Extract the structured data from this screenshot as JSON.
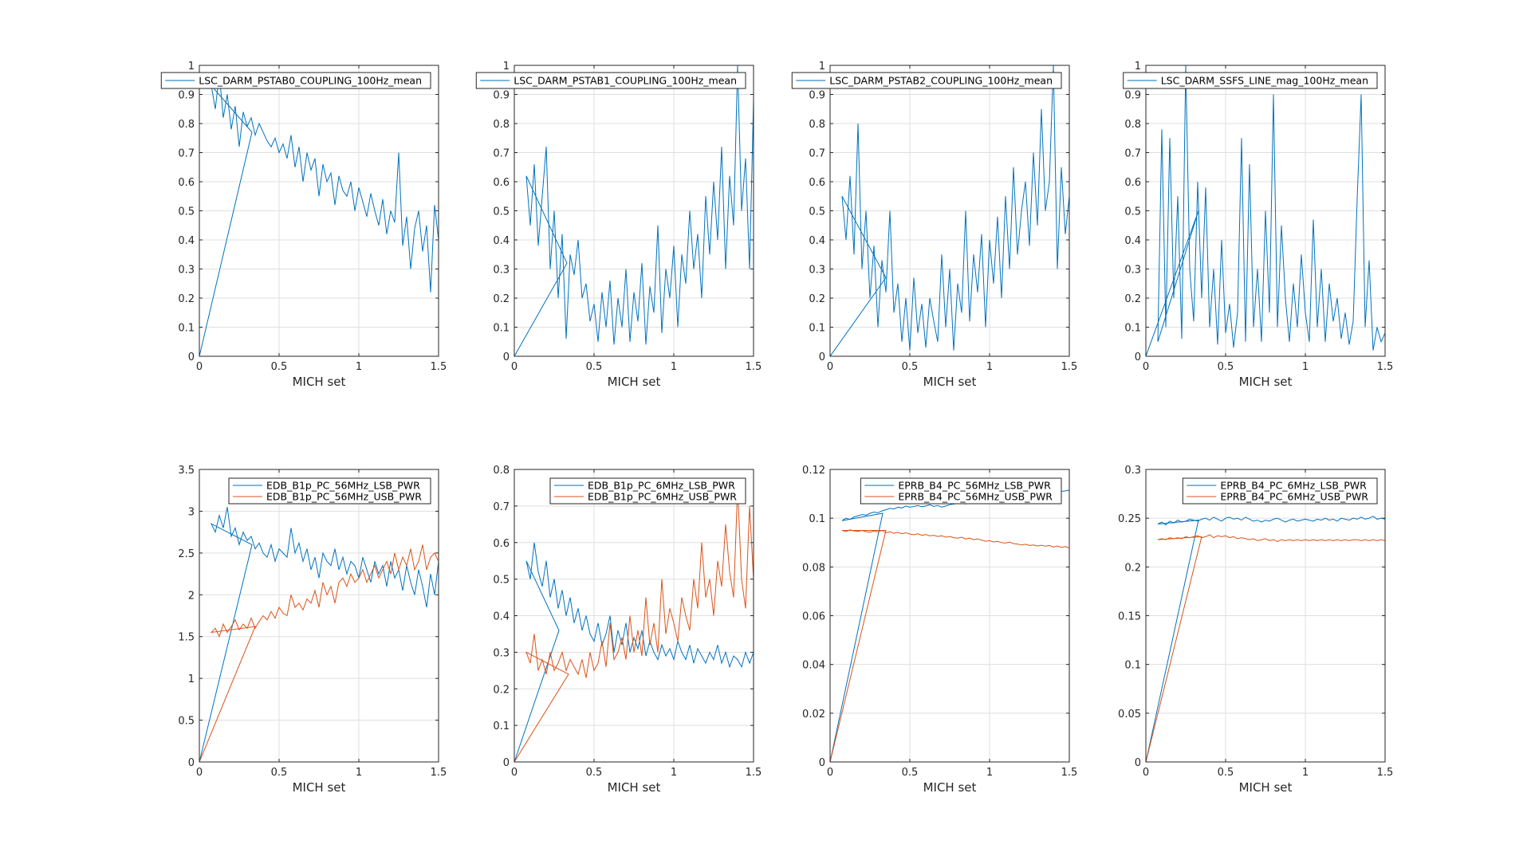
{
  "colors": {
    "blue": "#0072BD",
    "orange": "#D95319",
    "grid": "#DFDFDF",
    "axis": "#262626"
  },
  "chart_data": [
    {
      "type": "line",
      "xlabel": "MICH set",
      "xlim": [
        0,
        1.5
      ],
      "xticks": [
        "0",
        "0.5",
        "1",
        "1.5"
      ],
      "ylim": [
        0,
        1
      ],
      "yticks": [
        "0",
        "0.1",
        "0.2",
        "0.3",
        "0.4",
        "0.5",
        "0.6",
        "0.7",
        "0.8",
        "0.9",
        "1"
      ],
      "grid": true,
      "legend": "top-right",
      "x_start": 0.075,
      "x_step": 0.025,
      "series": [
        {
          "name": "LSC_DARM_PSTAB0_COUPLING_100Hz_mean",
          "color": "blue",
          "ramp_end": [
            0.33,
            0.77
          ],
          "values": [
            0.93,
            0.85,
            0.97,
            0.82,
            0.9,
            0.78,
            0.86,
            0.72,
            0.84,
            0.79,
            0.82,
            0.76,
            0.8,
            0.77,
            0.74,
            0.72,
            0.75,
            0.7,
            0.73,
            0.68,
            0.76,
            0.65,
            0.72,
            0.6,
            0.7,
            0.64,
            0.68,
            0.55,
            0.66,
            0.6,
            0.63,
            0.52,
            0.62,
            0.57,
            0.55,
            0.6,
            0.5,
            0.58,
            0.53,
            0.48,
            0.56,
            0.5,
            0.45,
            0.54,
            0.42,
            0.5,
            0.46,
            0.7,
            0.38,
            0.48,
            0.3,
            0.44,
            0.5,
            0.36,
            0.45,
            0.22,
            0.52,
            0.4
          ]
        }
      ]
    },
    {
      "type": "line",
      "xlabel": "MICH set",
      "xlim": [
        0,
        1.5
      ],
      "xticks": [
        "0",
        "0.5",
        "1",
        "1.5"
      ],
      "ylim": [
        0,
        1
      ],
      "yticks": [
        "0",
        "0.1",
        "0.2",
        "0.3",
        "0.4",
        "0.5",
        "0.6",
        "0.7",
        "0.8",
        "0.9",
        "1"
      ],
      "grid": true,
      "legend": "top-right",
      "x_start": 0.075,
      "x_step": 0.025,
      "series": [
        {
          "name": "LSC_DARM_PSTAB1_COUPLING_100Hz_mean",
          "color": "blue",
          "ramp_end": [
            0.33,
            0.32
          ],
          "values": [
            0.62,
            0.45,
            0.66,
            0.38,
            0.55,
            0.72,
            0.3,
            0.5,
            0.2,
            0.42,
            0.06,
            0.35,
            0.28,
            0.4,
            0.2,
            0.25,
            0.12,
            0.18,
            0.05,
            0.22,
            0.1,
            0.26,
            0.04,
            0.2,
            0.1,
            0.3,
            0.05,
            0.22,
            0.12,
            0.32,
            0.04,
            0.24,
            0.15,
            0.45,
            0.08,
            0.3,
            0.2,
            0.38,
            0.1,
            0.35,
            0.25,
            0.5,
            0.3,
            0.42,
            0.2,
            0.55,
            0.35,
            0.6,
            0.4,
            0.72,
            0.3,
            0.62,
            0.45,
            1.0,
            0.5,
            0.68,
            0.3,
            0.88
          ]
        }
      ]
    },
    {
      "type": "line",
      "xlabel": "MICH set",
      "xlim": [
        0,
        1.5
      ],
      "xticks": [
        "0",
        "0.5",
        "1",
        "1.5"
      ],
      "ylim": [
        0,
        1
      ],
      "yticks": [
        "0",
        "0.1",
        "0.2",
        "0.3",
        "0.4",
        "0.5",
        "0.6",
        "0.7",
        "0.8",
        "0.9",
        "1"
      ],
      "grid": true,
      "legend": "top-right",
      "x_start": 0.075,
      "x_step": 0.025,
      "series": [
        {
          "name": "LSC_DARM_PSTAB2_COUPLING_100Hz_mean",
          "color": "blue",
          "ramp_end": [
            0.35,
            0.27
          ],
          "values": [
            0.55,
            0.4,
            0.62,
            0.35,
            0.8,
            0.3,
            0.5,
            0.2,
            0.38,
            0.1,
            0.33,
            0.22,
            0.5,
            0.15,
            0.25,
            0.05,
            0.2,
            0.02,
            0.27,
            0.08,
            0.18,
            0.03,
            0.2,
            0.12,
            0.05,
            0.35,
            0.1,
            0.3,
            0.02,
            0.25,
            0.15,
            0.5,
            0.12,
            0.35,
            0.22,
            0.42,
            0.1,
            0.4,
            0.25,
            0.48,
            0.2,
            0.55,
            0.3,
            0.65,
            0.35,
            0.5,
            0.6,
            0.38,
            0.7,
            0.45,
            0.85,
            0.5,
            0.6,
            1.0,
            0.3,
            0.65,
            0.42,
            0.55
          ]
        }
      ]
    },
    {
      "type": "line",
      "xlabel": "MICH set",
      "xlim": [
        0,
        1.5
      ],
      "xticks": [
        "0",
        "0.5",
        "1",
        "1.5"
      ],
      "ylim": [
        0,
        1
      ],
      "yticks": [
        "0",
        "0.1",
        "0.2",
        "0.3",
        "0.4",
        "0.5",
        "0.6",
        "0.7",
        "0.8",
        "0.9",
        "1"
      ],
      "grid": true,
      "legend": "top-right",
      "x_start": 0.075,
      "x_step": 0.025,
      "series": [
        {
          "name": "LSC_DARM_SSFS_LINE_mag_100Hz_mean",
          "color": "blue",
          "ramp_end": [
            0.33,
            0.5
          ],
          "values": [
            0.05,
            0.78,
            0.1,
            0.75,
            0.2,
            0.55,
            0.06,
            1.0,
            0.3,
            0.12,
            0.6,
            0.2,
            0.58,
            0.1,
            0.3,
            0.04,
            0.4,
            0.08,
            0.18,
            0.03,
            0.15,
            0.75,
            0.05,
            0.66,
            0.1,
            0.3,
            0.05,
            0.5,
            0.15,
            0.9,
            0.1,
            0.45,
            0.2,
            0.05,
            0.25,
            0.1,
            0.35,
            0.15,
            0.05,
            0.47,
            0.1,
            0.3,
            0.05,
            0.25,
            0.12,
            0.2,
            0.06,
            0.15,
            0.04,
            0.12,
            0.54,
            0.9,
            0.1,
            0.33,
            0.02,
            0.1,
            0.05,
            0.08
          ]
        }
      ]
    },
    {
      "type": "line",
      "xlabel": "MICH set",
      "xlim": [
        0,
        1.5
      ],
      "xticks": [
        "0",
        "0.5",
        "1",
        "1.5"
      ],
      "ylim": [
        0,
        3.5
      ],
      "yticks": [
        "0",
        "0.5",
        "1",
        "1.5",
        "2",
        "2.5",
        "3",
        "3.5"
      ],
      "grid": true,
      "legend": "top-right",
      "x_start": 0.075,
      "x_step": 0.025,
      "series": [
        {
          "name": "EDB_B1p_PC_56MHz_LSB_PWR",
          "color": "blue",
          "ramp_end": [
            0.33,
            2.6
          ],
          "values": [
            2.85,
            2.75,
            2.95,
            2.8,
            3.05,
            2.7,
            2.8,
            2.6,
            2.75,
            2.65,
            2.7,
            2.55,
            2.62,
            2.5,
            2.45,
            2.6,
            2.4,
            2.55,
            2.5,
            2.45,
            2.8,
            2.5,
            2.62,
            2.4,
            2.55,
            2.3,
            2.45,
            2.2,
            2.5,
            2.4,
            2.35,
            2.55,
            2.3,
            2.45,
            2.25,
            2.4,
            2.35,
            2.2,
            2.45,
            2.3,
            2.15,
            2.4,
            2.25,
            2.35,
            2.1,
            2.4,
            2.2,
            2.3,
            2.05,
            2.35,
            2.15,
            2.0,
            2.3,
            2.1,
            1.85,
            2.25,
            2.0,
            2.4
          ]
        },
        {
          "name": "EDB_B1p_PC_56MHz_USB_PWR",
          "color": "orange",
          "ramp_end": [
            0.35,
            1.62
          ],
          "values": [
            1.55,
            1.6,
            1.5,
            1.65,
            1.55,
            1.62,
            1.7,
            1.58,
            1.65,
            1.6,
            1.72,
            1.6,
            1.68,
            1.75,
            1.7,
            1.8,
            1.72,
            1.85,
            1.78,
            1.75,
            2.0,
            1.85,
            1.9,
            1.82,
            1.95,
            1.9,
            2.05,
            1.85,
            2.15,
            2.0,
            2.1,
            1.9,
            2.15,
            2.2,
            2.1,
            2.25,
            2.15,
            2.2,
            2.3,
            2.15,
            2.25,
            2.35,
            2.2,
            2.3,
            2.4,
            2.25,
            2.5,
            2.3,
            2.45,
            2.35,
            2.55,
            2.3,
            2.4,
            2.6,
            2.3,
            2.45,
            2.5,
            2.4
          ]
        }
      ]
    },
    {
      "type": "line",
      "xlabel": "MICH set",
      "xlim": [
        0,
        1.5
      ],
      "xticks": [
        "0",
        "0.5",
        "1",
        "1.5"
      ],
      "ylim": [
        0,
        0.8
      ],
      "yticks": [
        "0",
        "0.1",
        "0.2",
        "0.3",
        "0.4",
        "0.5",
        "0.6",
        "0.7",
        "0.8"
      ],
      "grid": true,
      "legend": "top-right",
      "x_start": 0.075,
      "x_step": 0.025,
      "series": [
        {
          "name": "EDB_B1p_PC_6MHz_LSB_PWR",
          "color": "blue",
          "ramp_end": [
            0.28,
            0.36
          ],
          "values": [
            0.55,
            0.5,
            0.6,
            0.52,
            0.48,
            0.55,
            0.45,
            0.5,
            0.42,
            0.47,
            0.4,
            0.45,
            0.38,
            0.42,
            0.36,
            0.4,
            0.35,
            0.33,
            0.38,
            0.32,
            0.35,
            0.4,
            0.3,
            0.36,
            0.32,
            0.38,
            0.3,
            0.34,
            0.31,
            0.36,
            0.29,
            0.33,
            0.3,
            0.28,
            0.32,
            0.29,
            0.31,
            0.28,
            0.33,
            0.3,
            0.28,
            0.32,
            0.27,
            0.31,
            0.29,
            0.27,
            0.3,
            0.28,
            0.32,
            0.27,
            0.3,
            0.26,
            0.29,
            0.28,
            0.26,
            0.3,
            0.27,
            0.3
          ]
        },
        {
          "name": "EDB_B1p_PC_6MHz_USB_PWR",
          "color": "orange",
          "ramp_end": [
            0.34,
            0.24
          ],
          "values": [
            0.3,
            0.27,
            0.35,
            0.25,
            0.28,
            0.24,
            0.3,
            0.25,
            0.27,
            0.3,
            0.25,
            0.28,
            0.26,
            0.24,
            0.28,
            0.23,
            0.3,
            0.25,
            0.27,
            0.33,
            0.26,
            0.38,
            0.28,
            0.3,
            0.34,
            0.28,
            0.4,
            0.3,
            0.36,
            0.29,
            0.45,
            0.32,
            0.38,
            0.3,
            0.5,
            0.35,
            0.42,
            0.38,
            0.33,
            0.45,
            0.4,
            0.36,
            0.5,
            0.42,
            0.6,
            0.45,
            0.5,
            0.4,
            0.55,
            0.48,
            0.65,
            0.52,
            0.45,
            0.75,
            0.5,
            0.42,
            0.7,
            0.5
          ]
        }
      ]
    },
    {
      "type": "line",
      "xlabel": "MICH set",
      "xlim": [
        0,
        1.5
      ],
      "xticks": [
        "0",
        "0.5",
        "1",
        "1.5"
      ],
      "ylim": [
        0,
        0.12
      ],
      "yticks": [
        "0",
        "0.02",
        "0.04",
        "0.06",
        "0.08",
        "0.1",
        "0.12"
      ],
      "grid": true,
      "legend": "top-right",
      "x_start": 0.075,
      "x_step": 0.025,
      "series": [
        {
          "name": "EPRB_B4_PC_56MHz_LSB_PWR",
          "color": "blue",
          "ramp_end": [
            0.33,
            0.102
          ],
          "values": [
            0.099,
            0.1,
            0.0995,
            0.1005,
            0.101,
            0.1015,
            0.1012,
            0.102,
            0.1025,
            0.1022,
            0.103,
            0.1035,
            0.104,
            0.1038,
            0.1045,
            0.1042,
            0.105,
            0.1045,
            0.1048,
            0.1052,
            0.1047,
            0.105,
            0.1055,
            0.1048,
            0.1052,
            0.1045,
            0.105,
            0.1055,
            0.1058,
            0.106,
            0.1062,
            0.1058,
            0.1065,
            0.1068,
            0.1066,
            0.107,
            0.1072,
            0.1075,
            0.1073,
            0.1078,
            0.108,
            0.1082,
            0.108,
            0.1085,
            0.1088,
            0.1086,
            0.109,
            0.1092,
            0.1095,
            0.1098,
            0.11,
            0.1102,
            0.1105,
            0.1108,
            0.1106,
            0.111,
            0.1112,
            0.1115
          ]
        },
        {
          "name": "EPRB_B4_PC_56MHz_USB_PWR",
          "color": "orange",
          "ramp_end": [
            0.35,
            0.095
          ],
          "values": [
            0.095,
            0.0945,
            0.0952,
            0.0948,
            0.0946,
            0.095,
            0.0945,
            0.0942,
            0.0948,
            0.0944,
            0.095,
            0.094,
            0.0945,
            0.0938,
            0.0942,
            0.0936,
            0.094,
            0.0935,
            0.0932,
            0.0936,
            0.093,
            0.0933,
            0.0928,
            0.093,
            0.0925,
            0.0928,
            0.0922,
            0.0925,
            0.092,
            0.0918,
            0.0922,
            0.0915,
            0.0918,
            0.0912,
            0.0915,
            0.091,
            0.0905,
            0.0908,
            0.0902,
            0.0905,
            0.09,
            0.0898,
            0.0902,
            0.0896,
            0.0894,
            0.089,
            0.0893,
            0.0888,
            0.089,
            0.0886,
            0.0889,
            0.0885,
            0.0888,
            0.0882,
            0.0886,
            0.088,
            0.0884,
            0.0878
          ]
        }
      ]
    },
    {
      "type": "line",
      "xlabel": "MICH set",
      "xlim": [
        0,
        1.5
      ],
      "xticks": [
        "0",
        "0.5",
        "1",
        "1.5"
      ],
      "ylim": [
        0,
        0.3
      ],
      "yticks": [
        "0",
        "0.05",
        "0.1",
        "0.15",
        "0.2",
        "0.25",
        "0.3"
      ],
      "grid": true,
      "legend": "top-right",
      "x_start": 0.075,
      "x_step": 0.025,
      "series": [
        {
          "name": "EPRB_B4_PC_6MHz_LSB_PWR",
          "color": "blue",
          "ramp_end": [
            0.33,
            0.248
          ],
          "values": [
            0.244,
            0.246,
            0.243,
            0.247,
            0.245,
            0.248,
            0.246,
            0.247,
            0.249,
            0.248,
            0.247,
            0.249,
            0.25,
            0.248,
            0.251,
            0.249,
            0.247,
            0.25,
            0.251,
            0.249,
            0.25,
            0.248,
            0.251,
            0.249,
            0.247,
            0.248,
            0.246,
            0.248,
            0.247,
            0.249,
            0.25,
            0.248,
            0.246,
            0.248,
            0.249,
            0.247,
            0.248,
            0.249,
            0.248,
            0.247,
            0.249,
            0.248,
            0.25,
            0.248,
            0.249,
            0.247,
            0.25,
            0.249,
            0.248,
            0.25,
            0.249,
            0.251,
            0.249,
            0.25,
            0.252,
            0.249,
            0.25,
            0.249
          ]
        },
        {
          "name": "EPRB_B4_PC_6MHz_USB_PWR",
          "color": "orange",
          "ramp_end": [
            0.35,
            0.231
          ],
          "values": [
            0.228,
            0.229,
            0.228,
            0.23,
            0.229,
            0.23,
            0.229,
            0.231,
            0.23,
            0.231,
            0.232,
            0.23,
            0.231,
            0.233,
            0.23,
            0.232,
            0.231,
            0.232,
            0.23,
            0.231,
            0.229,
            0.23,
            0.229,
            0.228,
            0.229,
            0.227,
            0.228,
            0.229,
            0.227,
            0.228,
            0.226,
            0.228,
            0.227,
            0.228,
            0.227,
            0.228,
            0.227,
            0.228,
            0.227,
            0.228,
            0.227,
            0.228,
            0.227,
            0.228,
            0.227,
            0.228,
            0.227,
            0.228,
            0.227,
            0.228,
            0.228,
            0.227,
            0.228,
            0.227,
            0.228,
            0.227,
            0.228,
            0.227
          ]
        }
      ]
    }
  ]
}
